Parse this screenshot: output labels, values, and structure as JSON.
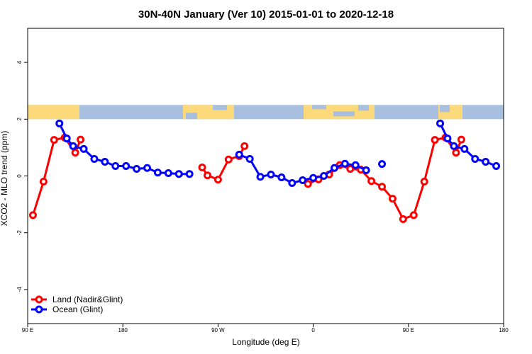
{
  "chart_data": {
    "type": "line",
    "title": "30N-40N January (Ver 10)   2015-01-01 to 2020-12-18",
    "xlabel": "Longitude (deg E)",
    "ylabel": "XCO2 - MLO trend (ppm)",
    "xlim": [
      90,
      540
    ],
    "ylim": [
      -5.2,
      5.2
    ],
    "x_ticks": [
      {
        "value": 90,
        "label": "90 E"
      },
      {
        "value": 180,
        "label": "180"
      },
      {
        "value": 270,
        "label": "90 W"
      },
      {
        "value": 360,
        "label": "0"
      },
      {
        "value": 450,
        "label": "90 E"
      },
      {
        "value": 540,
        "label": "180"
      }
    ],
    "y_ticks": [
      {
        "value": -4,
        "label": "-4"
      },
      {
        "value": -2,
        "label": "-2"
      },
      {
        "value": 0,
        "label": "0"
      },
      {
        "value": 2,
        "label": "2"
      },
      {
        "value": 4,
        "label": "4"
      }
    ],
    "map_strip": {
      "y_range": [
        2.0,
        2.5
      ],
      "ocean_color": "#a9bfe0",
      "land_color": "#fcd97a"
    },
    "series": [
      {
        "name": "Land (Nadir&Glint)",
        "color": "#ff0000",
        "segments": [
          [
            [
              95,
              -1.38
            ],
            [
              105,
              -0.2
            ],
            [
              115,
              1.27
            ],
            [
              125,
              1.35
            ],
            [
              135,
              0.82
            ],
            [
              140,
              1.28
            ]
          ],
          [
            [
              255,
              0.3
            ],
            [
              260,
              0.02
            ],
            [
              270,
              -0.13
            ],
            [
              280,
              0.58
            ],
            [
              290,
              0.7
            ],
            [
              295,
              1.05
            ]
          ],
          [
            [
              355,
              -0.28
            ],
            [
              365,
              -0.12
            ],
            [
              375,
              0.05
            ],
            [
              385,
              0.38
            ],
            [
              395,
              0.25
            ],
            [
              405,
              0.22
            ],
            [
              415,
              -0.18
            ],
            [
              425,
              -0.38
            ],
            [
              435,
              -0.8
            ],
            [
              445,
              -1.52
            ],
            [
              455,
              -1.38
            ],
            [
              465,
              -0.2
            ],
            [
              475,
              1.27
            ],
            [
              485,
              1.35
            ],
            [
              495,
              0.82
            ],
            [
              500,
              1.28
            ]
          ]
        ]
      },
      {
        "name": "Ocean (Glint)",
        "color": "#0000ff",
        "segments": [
          [
            [
              120,
              1.85
            ],
            [
              127,
              1.32
            ],
            [
              133,
              1.05
            ],
            [
              143,
              0.95
            ],
            [
              153,
              0.6
            ],
            [
              163,
              0.5
            ],
            [
              173,
              0.35
            ],
            [
              183,
              0.35
            ],
            [
              193,
              0.25
            ],
            [
              203,
              0.28
            ],
            [
              213,
              0.12
            ],
            [
              223,
              0.1
            ],
            [
              233,
              0.07
            ],
            [
              243,
              0.07
            ]
          ],
          [
            [
              290,
              0.75
            ],
            [
              300,
              0.6
            ],
            [
              310,
              -0.03
            ],
            [
              320,
              0.05
            ],
            [
              330,
              -0.05
            ],
            [
              340,
              -0.25
            ],
            [
              350,
              -0.15
            ],
            [
              360,
              -0.07
            ],
            [
              370,
              0.0
            ],
            [
              380,
              0.28
            ],
            [
              390,
              0.43
            ],
            [
              400,
              0.38
            ],
            [
              410,
              0.2
            ]
          ],
          [
            [
              425,
              0.42
            ]
          ],
          [
            [
              480,
              1.85
            ],
            [
              487,
              1.32
            ],
            [
              493,
              1.05
            ],
            [
              503,
              0.95
            ],
            [
              513,
              0.6
            ],
            [
              523,
              0.5
            ],
            [
              533,
              0.35
            ]
          ]
        ]
      }
    ],
    "legend": {
      "position": "bottom-left"
    }
  }
}
